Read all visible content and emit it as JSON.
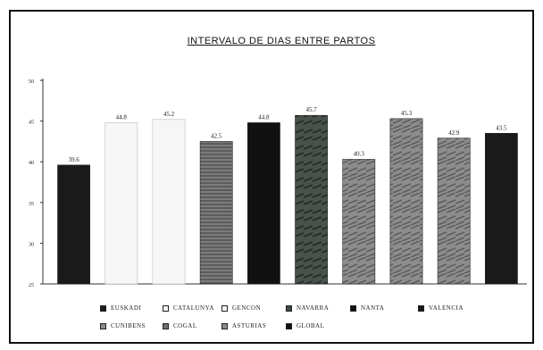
{
  "chart_data": {
    "type": "bar",
    "title": "INTERVALO DE DIAS ENTRE PARTOS",
    "xlabel": "",
    "ylabel": "",
    "ylim": [
      25,
      50
    ],
    "y_ticks": [
      "25",
      "30",
      "35",
      "40",
      "45",
      "50"
    ],
    "categories": [
      "EUSKADI",
      "CATALUNYA",
      "GENCON",
      "CUNIBENS",
      "COGAL",
      "NAVARRA",
      "ASTURIAS",
      "NANTA",
      "VALENCIA",
      "GLOBAL"
    ],
    "values": [
      39.6,
      44.8,
      45.2,
      42.5,
      44.8,
      45.7,
      40.3,
      45.3,
      42.9,
      43.5
    ],
    "value_labels": [
      "39.6",
      "44.8",
      "45.2",
      "42.5",
      "44.8",
      "45.7",
      "40.3",
      "45.3",
      "42.9",
      "43.5"
    ],
    "colors": [
      "#1a1a1a",
      "#f4f4f4",
      "#f4f4f4",
      "#6f6f6f",
      "#111111",
      "#3f4a43",
      "#8d8d8d",
      "#8a8a8a",
      "#7a7a7a",
      "#1a1a1a"
    ],
    "legend": {
      "placement": "bottom",
      "entries": [
        "EUSKADI",
        "CATALUNYA",
        "GENCON",
        "NAVARRA",
        "NANTA",
        "VALENCIA",
        "CUNIBENS",
        "COGAL",
        "ASTURIAS",
        "GLOBAL"
      ],
      "colors": [
        "#1a1a1a",
        "#f4f4f4",
        "#f4f4f4",
        "#3f4a43",
        "#111111",
        "#1a1a1a",
        "#8d8d8d",
        "#6f6f6f",
        "#8a8a8a",
        "#111111"
      ]
    },
    "grid": false
  }
}
